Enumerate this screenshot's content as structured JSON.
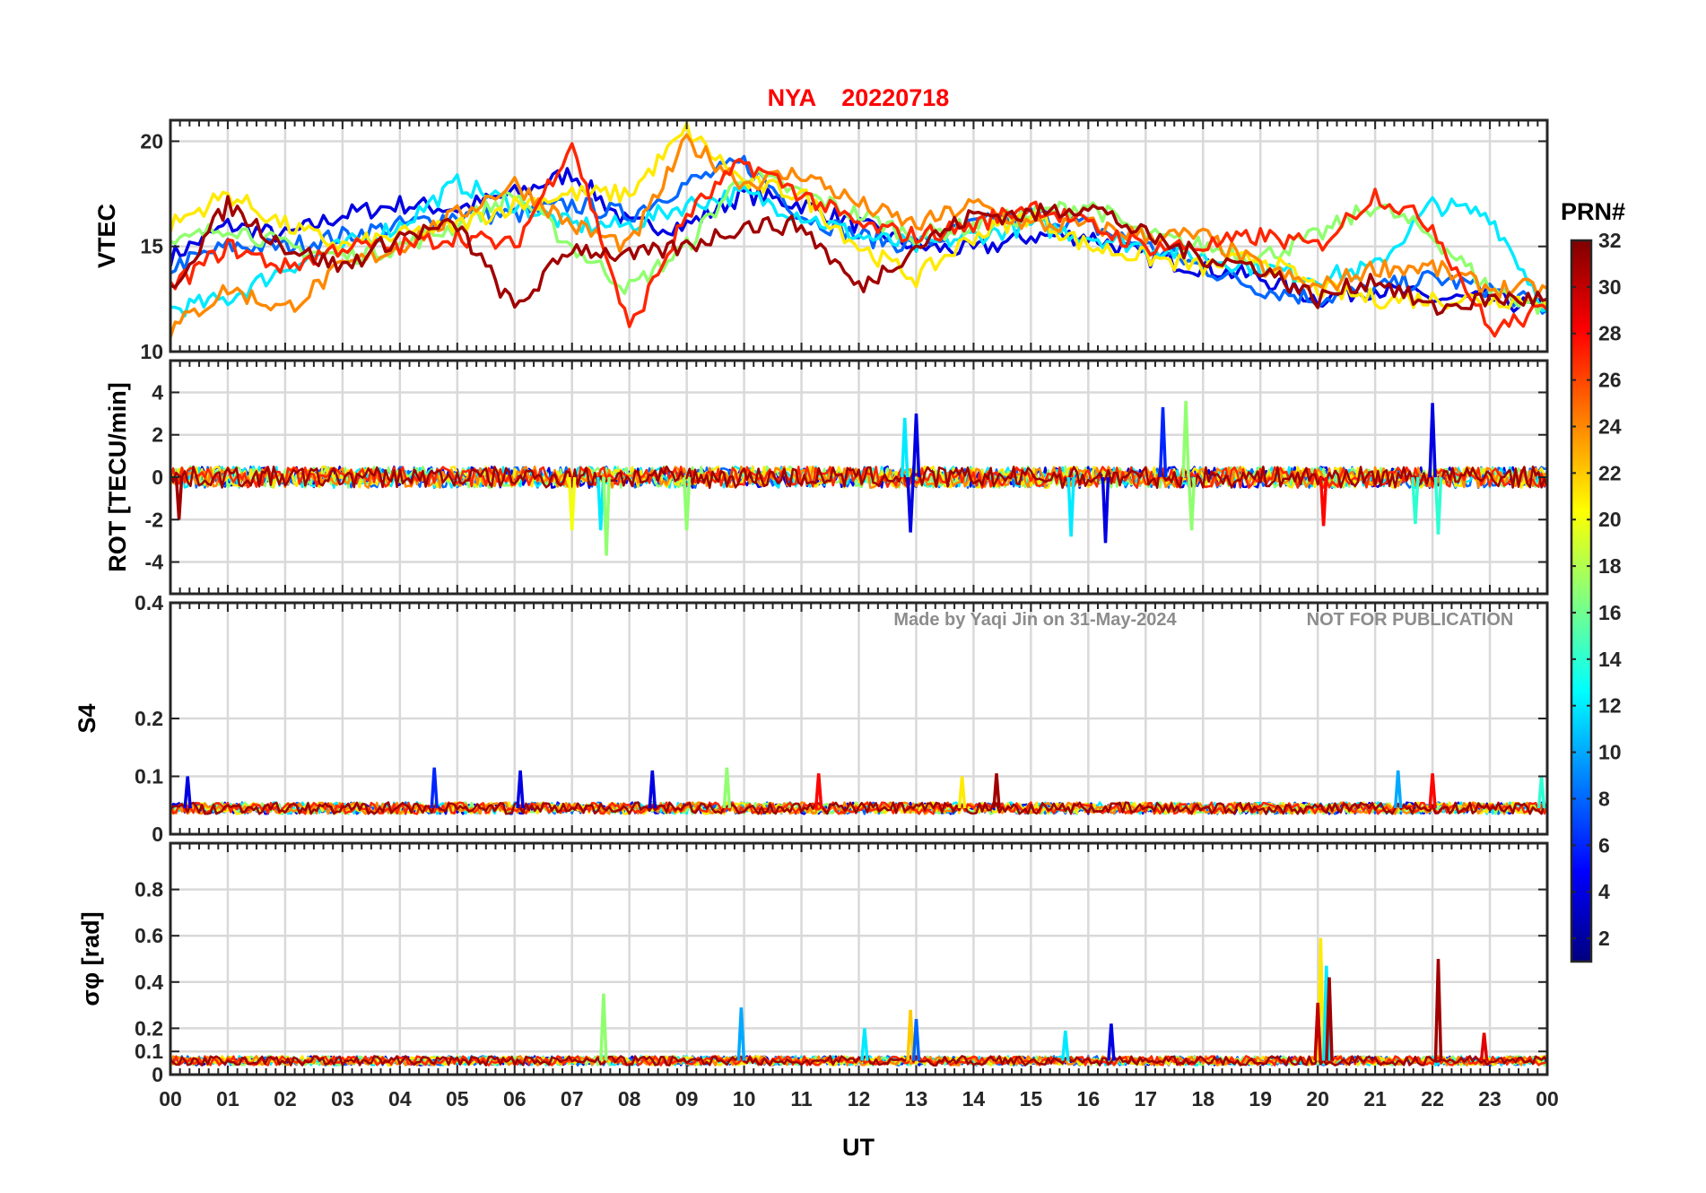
{
  "figure": {
    "title_station": "NYA",
    "title_date": "20220718",
    "watermark_left": "Made by Yaqi Jin on 31-May-2024",
    "watermark_right": "NOT FOR PUBLICATION",
    "xlabel": "UT",
    "colorbar_label": "PRN#",
    "colorbar_ticks": [
      "2",
      "4",
      "6",
      "8",
      "10",
      "12",
      "14",
      "16",
      "18",
      "20",
      "22",
      "24",
      "26",
      "28",
      "30",
      "32"
    ],
    "colorbar_range": [
      1,
      32
    ],
    "colormap": "jet",
    "title_color": "#ff0000"
  },
  "chart_data": [
    {
      "type": "line",
      "panel": "vtec",
      "ylabel": "VTEC",
      "xlim": [
        0,
        24
      ],
      "ylim": [
        10,
        21
      ],
      "x_ticks": [
        "00",
        "01",
        "02",
        "03",
        "04",
        "05",
        "06",
        "07",
        "08",
        "09",
        "10",
        "11",
        "12",
        "13",
        "14",
        "15",
        "16",
        "17",
        "18",
        "19",
        "20",
        "21",
        "22",
        "23",
        "00"
      ],
      "y_ticks": [
        "10",
        "15",
        "20"
      ],
      "y_tick_values": [
        10,
        15,
        20
      ],
      "series_note": "multiple satellites colored by PRN",
      "series": [
        {
          "prn": 4,
          "x": [
            0,
            1,
            2,
            3,
            4,
            5,
            6,
            7,
            8,
            9,
            10,
            11,
            12,
            13,
            14,
            15,
            16,
            17,
            18,
            19,
            20,
            21,
            22,
            23,
            24
          ],
          "values": [
            14.5,
            16,
            15.5,
            16.5,
            17,
            16.8,
            17.5,
            18.5,
            16,
            16,
            17.5,
            17,
            16,
            15,
            14.8,
            15.5,
            15.5,
            14.5,
            14,
            13.5,
            12.5,
            13,
            12.5,
            12.5,
            12
          ]
        },
        {
          "prn": 8,
          "x": [
            0,
            1,
            2,
            3,
            4,
            5,
            6,
            7,
            8,
            9,
            10,
            11,
            12,
            13,
            14,
            15,
            16,
            17,
            18,
            19,
            20,
            21,
            22,
            23,
            24
          ],
          "values": [
            14,
            15,
            15,
            15.5,
            16,
            16.5,
            16.5,
            17,
            16.5,
            18,
            19,
            16.5,
            15.5,
            15,
            16,
            16.5,
            16,
            15,
            14,
            13,
            12.5,
            13,
            13.5,
            13,
            12
          ]
        },
        {
          "prn": 12,
          "x": [
            0,
            1,
            2,
            3,
            4,
            5,
            6,
            7,
            8,
            9,
            10,
            11,
            12,
            13,
            14,
            15,
            16,
            17,
            18,
            19,
            20,
            21,
            22,
            23,
            24
          ],
          "values": [
            12,
            12.5,
            14,
            15,
            16,
            18,
            17,
            16,
            16,
            17,
            17.5,
            16.5,
            15.5,
            15,
            15.5,
            16,
            15.5,
            15,
            14.5,
            14,
            13.5,
            14,
            17,
            16.5,
            12
          ]
        },
        {
          "prn": 17,
          "x": [
            0,
            1,
            2,
            3,
            4,
            5,
            6,
            7,
            8,
            9,
            10,
            11,
            12,
            13,
            14,
            15,
            16,
            17,
            18,
            19,
            20,
            21,
            22,
            23,
            24
          ],
          "values": [
            15,
            16,
            15,
            14.5,
            15,
            16,
            17.5,
            15,
            13,
            15,
            18.5,
            17.5,
            16.5,
            15.5,
            16,
            16.5,
            17,
            15.5,
            15,
            14.5,
            15.5,
            17,
            15.5,
            13,
            12
          ]
        },
        {
          "prn": 21,
          "x": [
            0,
            1,
            2,
            3,
            4,
            5,
            6,
            7,
            8,
            9,
            10,
            11,
            12,
            13,
            14,
            15,
            16,
            17,
            18,
            19,
            20,
            21,
            22,
            23,
            24
          ],
          "values": [
            16,
            17.5,
            16,
            15,
            15.5,
            16,
            17,
            17.5,
            17.5,
            20.5,
            18,
            17.5,
            15,
            13.5,
            15.5,
            16.5,
            15,
            14.5,
            14,
            14.5,
            13,
            12.5,
            12.5,
            12.5,
            12.5
          ]
        },
        {
          "prn": 24,
          "x": [
            0,
            1,
            2,
            3,
            4,
            5,
            6,
            7,
            8,
            9,
            10,
            11,
            12,
            13,
            14,
            15,
            16,
            17,
            18,
            19,
            20,
            21,
            22,
            23,
            24
          ],
          "values": [
            11,
            13,
            12,
            14,
            15,
            16.5,
            18,
            16,
            15,
            20,
            18,
            18.5,
            17,
            16,
            17,
            16,
            16,
            15.5,
            15.5,
            14,
            13,
            14,
            14,
            13,
            13
          ]
        },
        {
          "prn": 27,
          "x": [
            0,
            1,
            2,
            3,
            4,
            5,
            6,
            7,
            8,
            9,
            10,
            11,
            12,
            13,
            14,
            15,
            16,
            17,
            18,
            19,
            20,
            21,
            22,
            23,
            24
          ],
          "values": [
            13,
            15,
            14,
            15,
            15,
            15.5,
            15,
            20,
            11,
            16.5,
            19,
            17.5,
            16,
            15.5,
            16,
            17,
            16,
            15,
            15,
            15.5,
            15,
            17.5,
            16,
            11,
            12
          ]
        },
        {
          "prn": 31,
          "x": [
            0,
            1,
            2,
            3,
            4,
            5,
            6,
            7,
            8,
            9,
            10,
            11,
            12,
            13,
            14,
            15,
            16,
            17,
            18,
            19,
            20,
            21,
            22,
            23,
            24
          ],
          "values": [
            13,
            17,
            15,
            14,
            15.5,
            16,
            12,
            15,
            14.5,
            15,
            16,
            16,
            13,
            15,
            16.5,
            16.5,
            17,
            15.5,
            14.5,
            14,
            12.5,
            13.5,
            12,
            12.5,
            12.5
          ]
        }
      ]
    },
    {
      "type": "line",
      "panel": "rot",
      "ylabel": "ROT [TECU/min]",
      "xlim": [
        0,
        24
      ],
      "ylim": [
        -5.5,
        5.5
      ],
      "y_ticks": [
        "-4",
        "-2",
        "0",
        "2",
        "4"
      ],
      "y_tick_values": [
        -4,
        -2,
        0,
        2,
        4
      ],
      "baseline": 0,
      "noise_amplitude": 0.5,
      "spikes": [
        {
          "x": 0.15,
          "value": -2.0,
          "prn": 31
        },
        {
          "x": 7.0,
          "value": -2.5,
          "prn": 20
        },
        {
          "x": 7.5,
          "value": -2.5,
          "prn": 12
        },
        {
          "x": 7.6,
          "value": -3.7,
          "prn": 17
        },
        {
          "x": 9.0,
          "value": -2.5,
          "prn": 17
        },
        {
          "x": 12.8,
          "value": 2.8,
          "prn": 12
        },
        {
          "x": 12.9,
          "value": -2.6,
          "prn": 4
        },
        {
          "x": 13.0,
          "value": 3.0,
          "prn": 4
        },
        {
          "x": 15.7,
          "value": -2.8,
          "prn": 12
        },
        {
          "x": 16.3,
          "value": -3.1,
          "prn": 4
        },
        {
          "x": 17.3,
          "value": 3.3,
          "prn": 6
        },
        {
          "x": 17.7,
          "value": 3.6,
          "prn": 17
        },
        {
          "x": 17.8,
          "value": -2.5,
          "prn": 17
        },
        {
          "x": 20.1,
          "value": -2.3,
          "prn": 28
        },
        {
          "x": 21.7,
          "value": -2.2,
          "prn": 14
        },
        {
          "x": 22.0,
          "value": 3.5,
          "prn": 4
        },
        {
          "x": 22.1,
          "value": -2.7,
          "prn": 14
        }
      ]
    },
    {
      "type": "line",
      "panel": "s4",
      "ylabel": "S4",
      "xlim": [
        0,
        24
      ],
      "ylim": [
        0,
        0.4
      ],
      "y_ticks": [
        "0",
        "0.1",
        "0.2",
        "0.4"
      ],
      "y_tick_values": [
        0,
        0.1,
        0.2,
        0.4
      ],
      "baseline": 0.045,
      "noise_amplitude": 0.02,
      "peaks": [
        {
          "x": 0.3,
          "value": 0.1,
          "prn": 4
        },
        {
          "x": 4.6,
          "value": 0.115,
          "prn": 6
        },
        {
          "x": 6.1,
          "value": 0.11,
          "prn": 4
        },
        {
          "x": 8.4,
          "value": 0.11,
          "prn": 4
        },
        {
          "x": 9.7,
          "value": 0.115,
          "prn": 17
        },
        {
          "x": 11.3,
          "value": 0.105,
          "prn": 28
        },
        {
          "x": 13.8,
          "value": 0.1,
          "prn": 21
        },
        {
          "x": 14.4,
          "value": 0.105,
          "prn": 31
        },
        {
          "x": 21.4,
          "value": 0.11,
          "prn": 10
        },
        {
          "x": 22.0,
          "value": 0.105,
          "prn": 28
        },
        {
          "x": 23.9,
          "value": 0.1,
          "prn": 14
        }
      ]
    },
    {
      "type": "line",
      "panel": "sigma_phi",
      "ylabel": "σφ [rad]",
      "xlim": [
        0,
        24
      ],
      "ylim": [
        0,
        1.0
      ],
      "y_ticks": [
        "0",
        "0.1",
        "0.2",
        "0.4",
        "0.6",
        "0.8"
      ],
      "y_tick_values": [
        0,
        0.1,
        0.2,
        0.4,
        0.6,
        0.8
      ],
      "baseline": 0.06,
      "noise_amplitude": 0.04,
      "peaks": [
        {
          "x": 7.55,
          "value": 0.35,
          "prn": 17
        },
        {
          "x": 9.95,
          "value": 0.29,
          "prn": 10
        },
        {
          "x": 12.1,
          "value": 0.2,
          "prn": 12
        },
        {
          "x": 12.9,
          "value": 0.28,
          "prn": 22
        },
        {
          "x": 13.0,
          "value": 0.24,
          "prn": 8
        },
        {
          "x": 15.6,
          "value": 0.19,
          "prn": 12
        },
        {
          "x": 16.4,
          "value": 0.22,
          "prn": 4
        },
        {
          "x": 20.05,
          "value": 0.59,
          "prn": 21
        },
        {
          "x": 20.15,
          "value": 0.47,
          "prn": 12
        },
        {
          "x": 20.2,
          "value": 0.42,
          "prn": 31
        },
        {
          "x": 20.0,
          "value": 0.31,
          "prn": 30
        },
        {
          "x": 22.1,
          "value": 0.5,
          "prn": 31
        },
        {
          "x": 22.9,
          "value": 0.18,
          "prn": 29
        }
      ]
    }
  ]
}
